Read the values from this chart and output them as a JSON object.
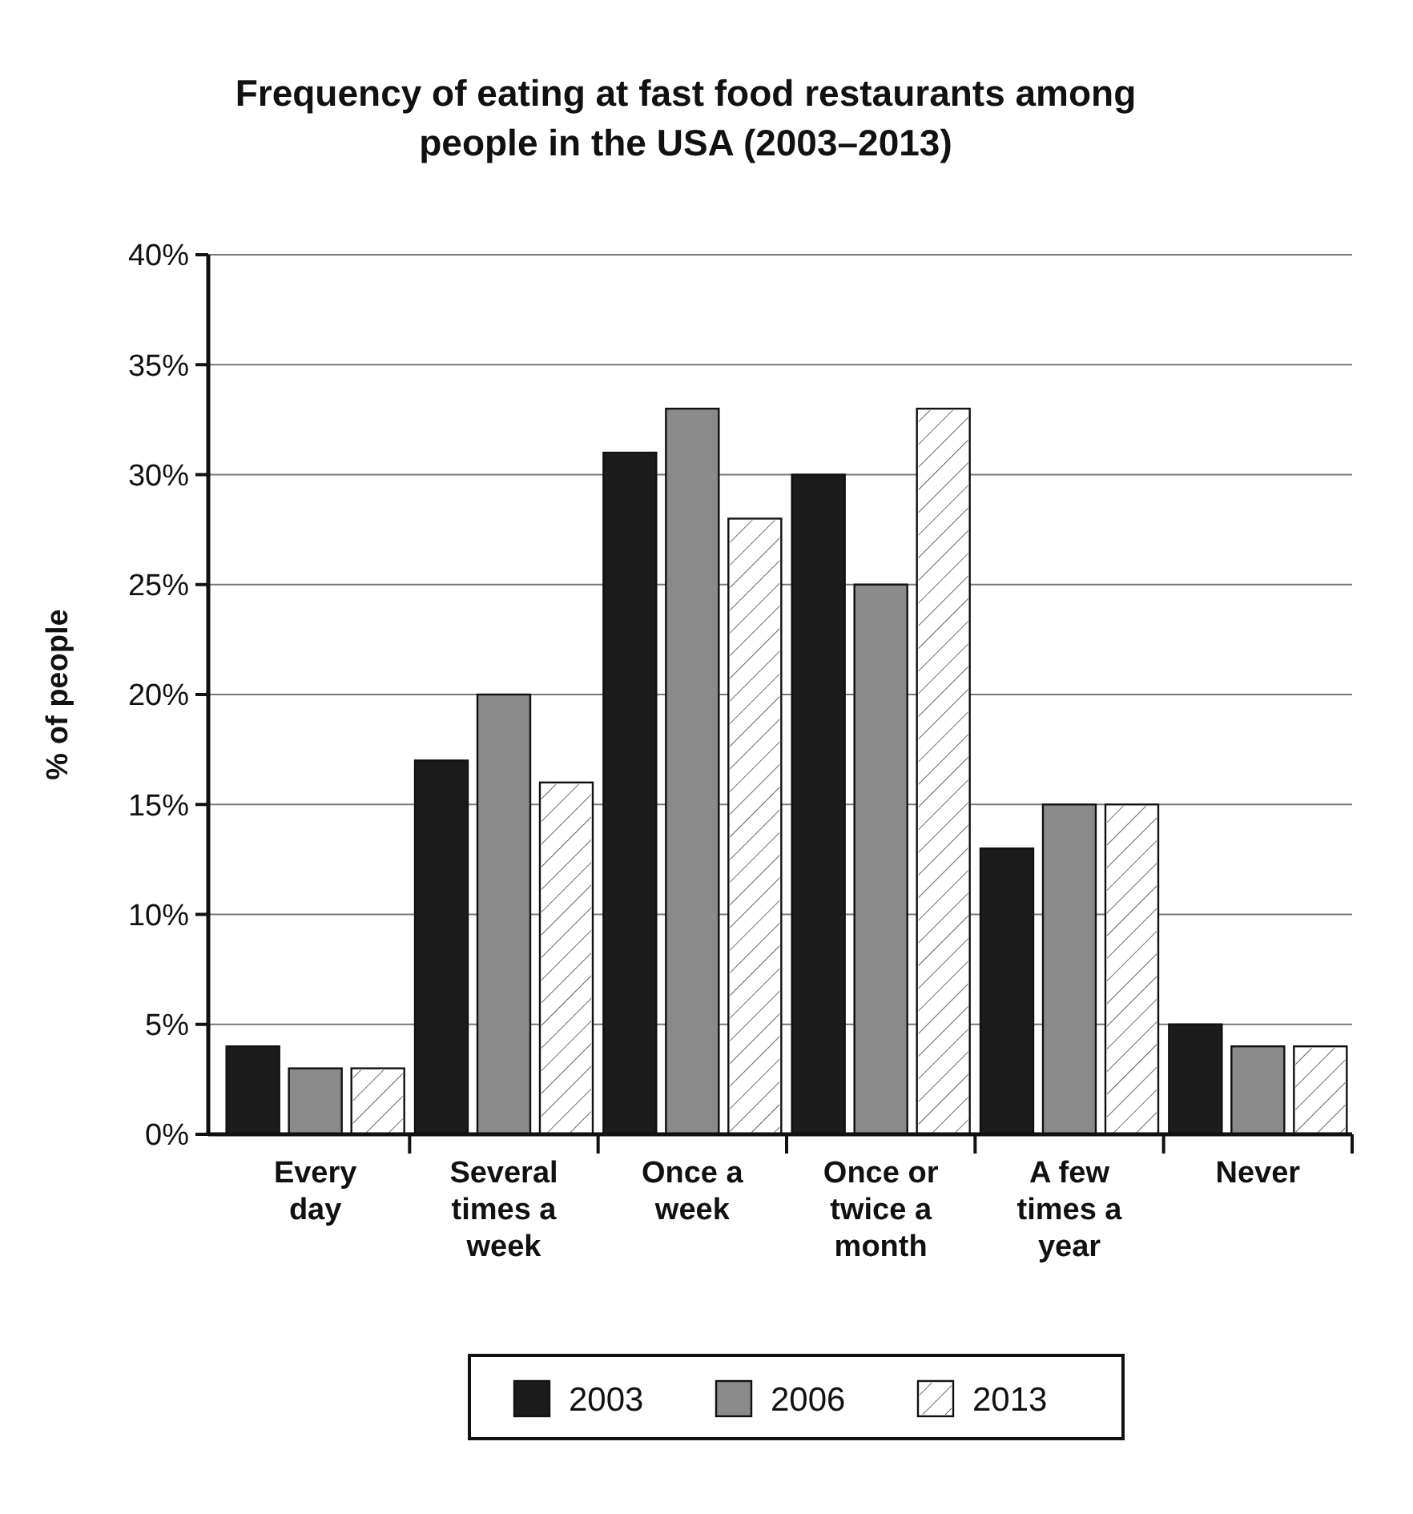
{
  "chart_data": {
    "type": "bar",
    "title": "Frequency of eating at fast food restaurants among people in the USA (2003–2013)",
    "ylabel": "% of people",
    "categories": [
      "Every day",
      "Several times a week",
      "Once a week",
      "Once or twice a month",
      "A few times a year",
      "Never"
    ],
    "series": [
      {
        "name": "2003",
        "color": "#1c1c1c",
        "values": [
          4,
          17,
          31,
          30,
          13,
          5
        ]
      },
      {
        "name": "2006",
        "color": "#8a8a8a",
        "values": [
          3,
          20,
          33,
          25,
          15,
          4
        ]
      },
      {
        "name": "2013",
        "color": "#ffffff",
        "values": [
          3,
          16,
          28,
          33,
          15,
          4
        ]
      }
    ],
    "ylim": [
      0,
      40
    ],
    "yticks": [
      {
        "value": 0,
        "label": "0%"
      },
      {
        "value": 5,
        "label": "5%"
      },
      {
        "value": 10,
        "label": "10%"
      },
      {
        "value": 15,
        "label": "15%"
      },
      {
        "value": 20,
        "label": "20%"
      },
      {
        "value": 25,
        "label": "25%"
      },
      {
        "value": 30,
        "label": "30%"
      },
      {
        "value": 35,
        "label": "35%"
      },
      {
        "value": 40,
        "label": "40%"
      }
    ],
    "grid": "y",
    "legend": "bottom"
  }
}
